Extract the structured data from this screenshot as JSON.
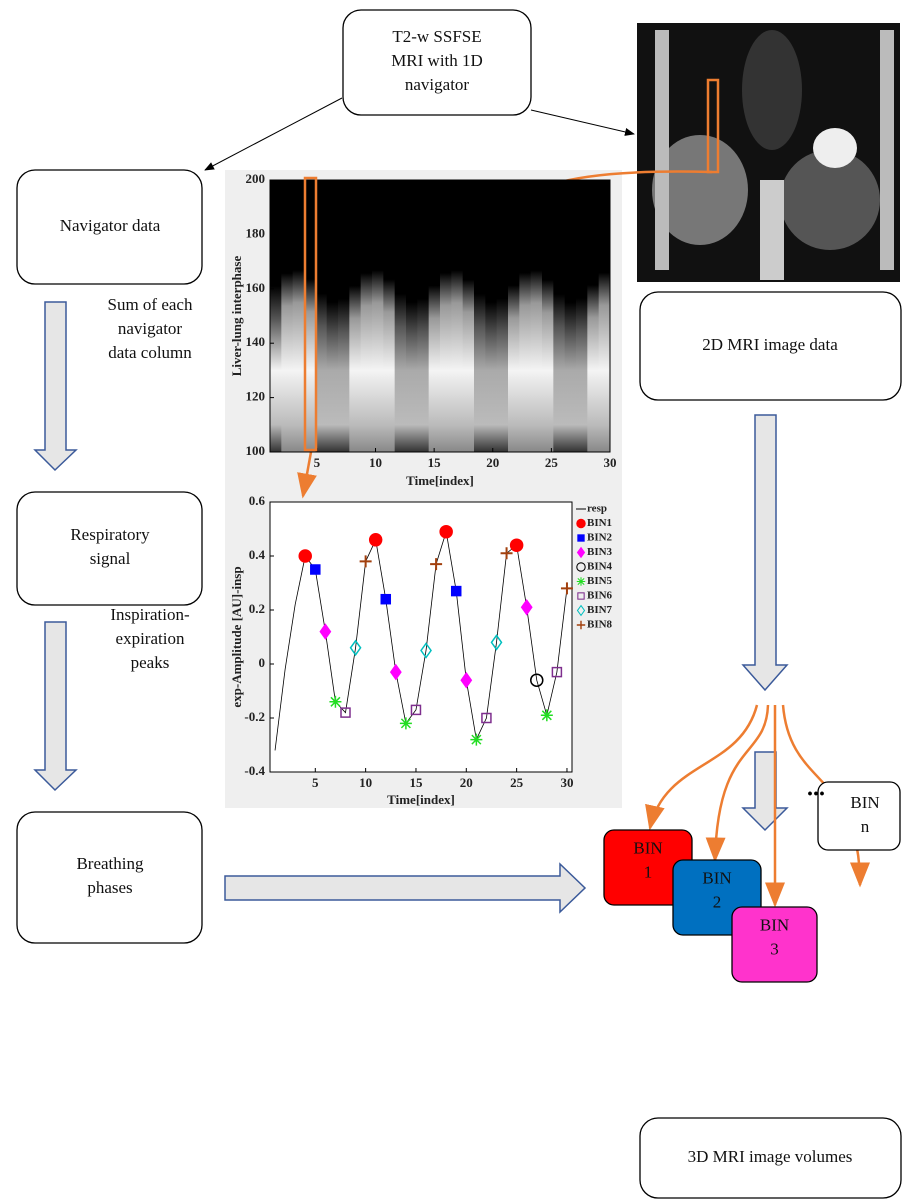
{
  "nodes": [
    {
      "lines": [
        "T2-w SSFSE",
        "MRI with 1D",
        "navigator"
      ]
    },
    {
      "lines": [
        "Navigator data"
      ]
    },
    {
      "lines": [
        "Respiratory",
        "signal"
      ]
    },
    {
      "lines": [
        "Breathing",
        "phases"
      ]
    },
    {
      "lines": [
        "2D MRI image data"
      ]
    },
    {
      "lines": [
        "3D MRI image volumes"
      ]
    }
  ],
  "edge_labels": [
    {
      "lines": [
        "Sum of each",
        "navigator",
        "data column"
      ]
    },
    {
      "lines": [
        "Inspiration-",
        "expiration",
        "peaks"
      ]
    }
  ],
  "bins": [
    {
      "lines": [
        "BIN",
        "1"
      ],
      "color": "#ff0000"
    },
    {
      "lines": [
        "BIN",
        "2"
      ],
      "color": "#0070c0"
    },
    {
      "lines": [
        "BIN",
        "3"
      ],
      "color": "#ff33cc"
    },
    {
      "lines": [
        "BIN",
        "n"
      ],
      "color": "#ffffff"
    }
  ],
  "ellipsis": "...",
  "chart_data": [
    {
      "type": "heatmap",
      "xlabel": "Time[index]",
      "ylabel": "Liver-lung interphase",
      "xlim": [
        1,
        30
      ],
      "xticks": [
        5,
        10,
        15,
        20,
        25,
        30
      ],
      "ylim": [
        100,
        200
      ],
      "yticks": [
        100,
        120,
        140,
        160,
        180,
        200
      ]
    },
    {
      "type": "line",
      "xlabel": "Time[index]",
      "ylabel": "exp-Amplitude [AU]-insp",
      "xlim": [
        0.5,
        30.5
      ],
      "xticks": [
        5,
        10,
        15,
        20,
        25,
        30
      ],
      "ylim": [
        -0.4,
        0.6
      ],
      "yticks": [
        -0.4,
        -0.2,
        0,
        0.2,
        0.4,
        0.6
      ],
      "x": [
        1,
        2,
        3,
        4,
        5,
        6,
        7,
        8,
        9,
        10,
        11,
        12,
        13,
        14,
        15,
        16,
        17,
        18,
        19,
        20,
        21,
        22,
        23,
        24,
        25,
        26,
        27,
        28,
        29,
        30
      ],
      "series": [
        {
          "name": "resp",
          "color": "#000000",
          "marker": "line",
          "values": [
            -0.32,
            -0.02,
            0.22,
            0.4,
            0.35,
            0.12,
            -0.14,
            -0.18,
            0.06,
            0.38,
            0.46,
            0.24,
            -0.03,
            -0.22,
            -0.17,
            0.05,
            0.37,
            0.49,
            0.27,
            -0.06,
            -0.28,
            -0.2,
            0.08,
            0.41,
            0.44,
            0.21,
            -0.06,
            -0.19,
            -0.03,
            0.28
          ]
        },
        {
          "name": "BIN1",
          "color": "#ff0000",
          "marker": "circle-filled",
          "x": [
            4,
            11,
            18,
            25
          ],
          "values": [
            0.4,
            0.46,
            0.49,
            0.44
          ]
        },
        {
          "name": "BIN2",
          "color": "#0000ff",
          "marker": "square-filled",
          "x": [
            5,
            12,
            19
          ],
          "values": [
            0.35,
            0.24,
            0.27
          ]
        },
        {
          "name": "BIN3",
          "color": "#ff00ff",
          "marker": "diamond-filled",
          "x": [
            6,
            13,
            20,
            26
          ],
          "values": [
            0.12,
            -0.03,
            -0.06,
            0.21
          ]
        },
        {
          "name": "BIN4",
          "color": "#000000",
          "marker": "circle-open",
          "x": [
            27
          ],
          "values": [
            -0.06
          ]
        },
        {
          "name": "BIN5",
          "color": "#22dd22",
          "marker": "star",
          "x": [
            7,
            14,
            21,
            28
          ],
          "values": [
            -0.14,
            -0.22,
            -0.28,
            -0.19
          ]
        },
        {
          "name": "BIN6",
          "color": "#7e2f8e",
          "marker": "square-open",
          "x": [
            8,
            15,
            22,
            29
          ],
          "values": [
            -0.18,
            -0.17,
            -0.2,
            -0.03
          ]
        },
        {
          "name": "BIN7",
          "color": "#00bfbf",
          "marker": "diamond-open",
          "x": [
            9,
            16,
            23
          ],
          "values": [
            0.06,
            0.05,
            0.08
          ]
        },
        {
          "name": "BIN8",
          "color": "#a2400e",
          "marker": "plus",
          "x": [
            10,
            17,
            24,
            30
          ],
          "values": [
            0.38,
            0.37,
            0.41,
            0.28
          ]
        }
      ]
    }
  ]
}
